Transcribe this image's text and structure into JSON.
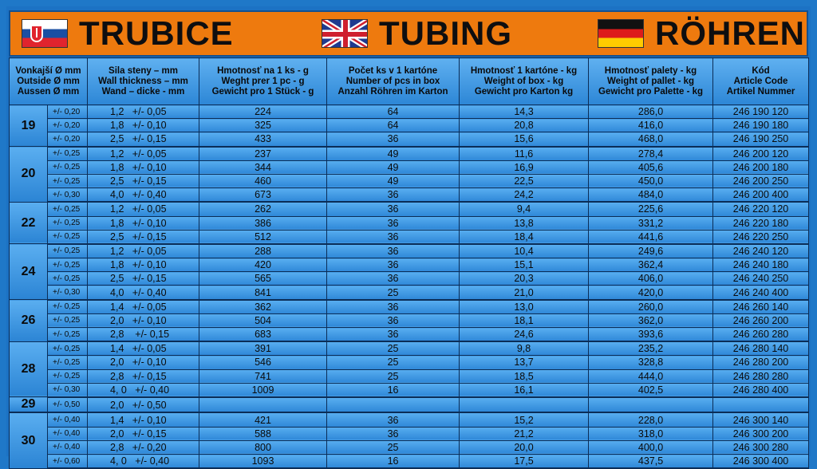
{
  "banner": {
    "titles": [
      "TRUBICE",
      "TUBING",
      "RÖHREN"
    ]
  },
  "headers": [
    [
      "Vonkajší Ø mm",
      "Outside Ø mm",
      "Aussen Ø mm"
    ],
    [
      "Sila steny – mm",
      "Wall thickness – mm",
      "Wand – dicke - mm"
    ],
    [
      "Hmotnosť na 1 ks - g",
      "Weght prer 1 pc - g",
      "Gewicht pro 1 Stück - g"
    ],
    [
      "Počet ks v 1 kartóne",
      "Number of pcs in box",
      "Anzahl Röhren im Karton"
    ],
    [
      "Hmotnosť  1 kartóne - kg",
      "Weight of box - kg",
      "Gewicht pro Karton kg"
    ],
    [
      "Hmotnosť palety - kg",
      "Weight of pallet - kg",
      "Gewicht pro Palette - kg"
    ],
    [
      "Kód",
      "Article Code",
      "Artikel Nummer"
    ]
  ],
  "groups": [
    {
      "od": "19",
      "rows": [
        [
          "+/- 0,20",
          "1,2   +/- 0,05",
          "224",
          "64",
          "14,3",
          "286,0",
          "246 190 120"
        ],
        [
          "+/- 0,20",
          "1,8   +/- 0,10",
          "325",
          "64",
          "20,8",
          "416,0",
          "246 190 180"
        ],
        [
          "+/- 0,20",
          "2,5   +/- 0,15",
          "433",
          "36",
          "15,6",
          "468,0",
          "246 190 250"
        ]
      ]
    },
    {
      "od": "20",
      "rows": [
        [
          "+/- 0,25",
          "1,2   +/- 0,05",
          "237",
          "49",
          "11,6",
          "278,4",
          "246 200 120"
        ],
        [
          "+/- 0,25",
          "1,8   +/- 0,10",
          "344",
          "49",
          "16,9",
          "405,6",
          "246 200 180"
        ],
        [
          "+/- 0,25",
          "2,5   +/- 0,15",
          "460",
          "49",
          "22,5",
          "450,0",
          "246 200 250"
        ],
        [
          "+/- 0,30",
          "4,0   +/- 0,40",
          "673",
          "36",
          "24,2",
          "484,0",
          "246 200 400"
        ]
      ]
    },
    {
      "od": "22",
      "rows": [
        [
          "+/- 0,25",
          "1,2   +/- 0,05",
          "262",
          "36",
          "9,4",
          "225,6",
          "246 220 120"
        ],
        [
          "+/- 0,25",
          "1,8   +/- 0,10",
          "386",
          "36",
          "13,8",
          "331,2",
          "246 220 180"
        ],
        [
          "+/- 0,25",
          "2,5   +/- 0,15",
          "512",
          "36",
          "18,4",
          "441,6",
          "246 220 250"
        ]
      ]
    },
    {
      "od": "24",
      "rows": [
        [
          "+/- 0,25",
          "1,2   +/- 0,05",
          "288",
          "36",
          "10,4",
          "249,6",
          "246 240 120"
        ],
        [
          "+/- 0,25",
          "1,8   +/- 0,10",
          "420",
          "36",
          "15,1",
          "362,4",
          "246 240 180"
        ],
        [
          "+/- 0,25",
          "2,5   +/- 0,15",
          "565",
          "36",
          "20,3",
          "406,0",
          "246 240 250"
        ],
        [
          "+/- 0,30",
          "4,0   +/- 0,40",
          "841",
          "25",
          "21,0",
          "420,0",
          "246 240 400"
        ]
      ]
    },
    {
      "od": "26",
      "rows": [
        [
          "+/- 0,25",
          "1,4   +/- 0,05",
          "362",
          "36",
          "13,0",
          "260,0",
          "246 260 140"
        ],
        [
          "+/- 0,25",
          "2,0   +/- 0,10",
          "504",
          "36",
          "18,1",
          "362,0",
          "246 260 200"
        ],
        [
          "+/- 0,25",
          "2,8    +/- 0,15",
          "683",
          "36",
          "24,6",
          "393,6",
          "246 260 280"
        ]
      ]
    },
    {
      "od": "28",
      "rows": [
        [
          "+/- 0,25",
          "1,4   +/- 0,05",
          "391",
          "25",
          "9,8",
          "235,2",
          "246 280 140"
        ],
        [
          "+/- 0,25",
          "2,0   +/- 0,10",
          "546",
          "25",
          "13,7",
          "328,8",
          "246 280 200"
        ],
        [
          "+/- 0,25",
          "2,8   +/- 0,15",
          "741",
          "25",
          "18,5",
          "444,0",
          "246 280 280"
        ],
        [
          "+/- 0,30",
          "4, 0   +/- 0,40",
          "1009",
          "16",
          "16,1",
          "402,5",
          "246 280 400"
        ]
      ]
    },
    {
      "od": "29",
      "rows": [
        [
          "+/- 0,50",
          "2,0   +/- 0,50",
          "",
          "",
          "",
          "",
          ""
        ]
      ]
    },
    {
      "od": "30",
      "rows": [
        [
          "+/- 0,40",
          "1,4   +/- 0,10",
          "421",
          "36",
          "15,2",
          "228,0",
          "246 300 140"
        ],
        [
          "+/- 0,40",
          "2,0   +/- 0,15",
          "588",
          "36",
          "21,2",
          "318,0",
          "246 300 200"
        ],
        [
          "+/- 0,40",
          "2,8   +/- 0,20",
          "800",
          "25",
          "20,0",
          "400,0",
          "246 300 280"
        ],
        [
          "+/- 0,60",
          "4, 0   +/- 0,40",
          "1093",
          "16",
          "17,5",
          "437,5",
          "246 300 400"
        ]
      ]
    }
  ]
}
